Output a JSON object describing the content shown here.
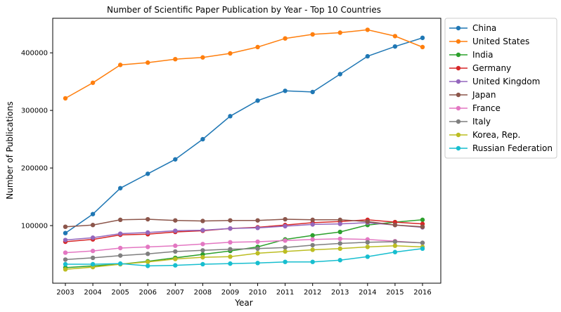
{
  "chart_data": {
    "type": "line",
    "title": "Number of Scientific Paper Publication by Year - Top 10 Countries",
    "xlabel": "Year",
    "ylabel": "Number of Publications",
    "x": [
      2003,
      2004,
      2005,
      2006,
      2007,
      2008,
      2009,
      2010,
      2011,
      2012,
      2013,
      2014,
      2015,
      2016
    ],
    "ylim": [
      0,
      460000
    ],
    "yticks": [
      100000,
      200000,
      300000,
      400000
    ],
    "grid": false,
    "legend_position": "outside-right",
    "series": [
      {
        "name": "China",
        "color": "#1f77b4",
        "values": [
          87000,
          120000,
          165000,
          190000,
          215000,
          250000,
          290000,
          317000,
          334000,
          332000,
          363000,
          394000,
          411000,
          426000
        ]
      },
      {
        "name": "United States",
        "color": "#ff7f0e",
        "values": [
          321000,
          348000,
          379000,
          383000,
          389000,
          392000,
          399000,
          410000,
          425000,
          432000,
          435000,
          440000,
          429000,
          410000
        ]
      },
      {
        "name": "India",
        "color": "#2ca02c",
        "values": [
          27000,
          30000,
          33000,
          38000,
          44000,
          50000,
          56000,
          63000,
          76000,
          83000,
          89000,
          101000,
          106000,
          110000
        ]
      },
      {
        "name": "Germany",
        "color": "#d62728",
        "values": [
          72000,
          76000,
          84000,
          85000,
          89000,
          91000,
          95000,
          97000,
          101000,
          105000,
          107000,
          110000,
          106000,
          103000
        ]
      },
      {
        "name": "United Kingdom",
        "color": "#9467bd",
        "values": [
          75000,
          79000,
          86000,
          88000,
          91000,
          92000,
          95000,
          96000,
          99000,
          102000,
          103000,
          105000,
          101000,
          97000
        ]
      },
      {
        "name": "Japan",
        "color": "#8c564b",
        "values": [
          98000,
          101000,
          110000,
          111000,
          109000,
          108000,
          109000,
          109000,
          111000,
          110000,
          110000,
          107000,
          101000,
          98000
        ]
      },
      {
        "name": "France",
        "color": "#e377c2",
        "values": [
          53000,
          56000,
          61000,
          63000,
          65000,
          68000,
          71000,
          72000,
          74000,
          76000,
          77000,
          76000,
          73000,
          70000
        ]
      },
      {
        "name": "Italy",
        "color": "#7f7f7f",
        "values": [
          41000,
          44000,
          48000,
          51000,
          55000,
          57000,
          59000,
          60000,
          62000,
          66000,
          69000,
          71000,
          72000,
          70000
        ]
      },
      {
        "name": "Korea, Rep.",
        "color": "#bcbd22",
        "values": [
          24000,
          28000,
          33000,
          37000,
          42000,
          45000,
          46000,
          52000,
          55000,
          58000,
          60000,
          63000,
          65000,
          63000
        ]
      },
      {
        "name": "Russian Federation",
        "color": "#17becf",
        "values": [
          33000,
          33000,
          34000,
          30000,
          31000,
          33000,
          34000,
          35000,
          37000,
          37000,
          40000,
          46000,
          54000,
          60000
        ]
      }
    ]
  }
}
